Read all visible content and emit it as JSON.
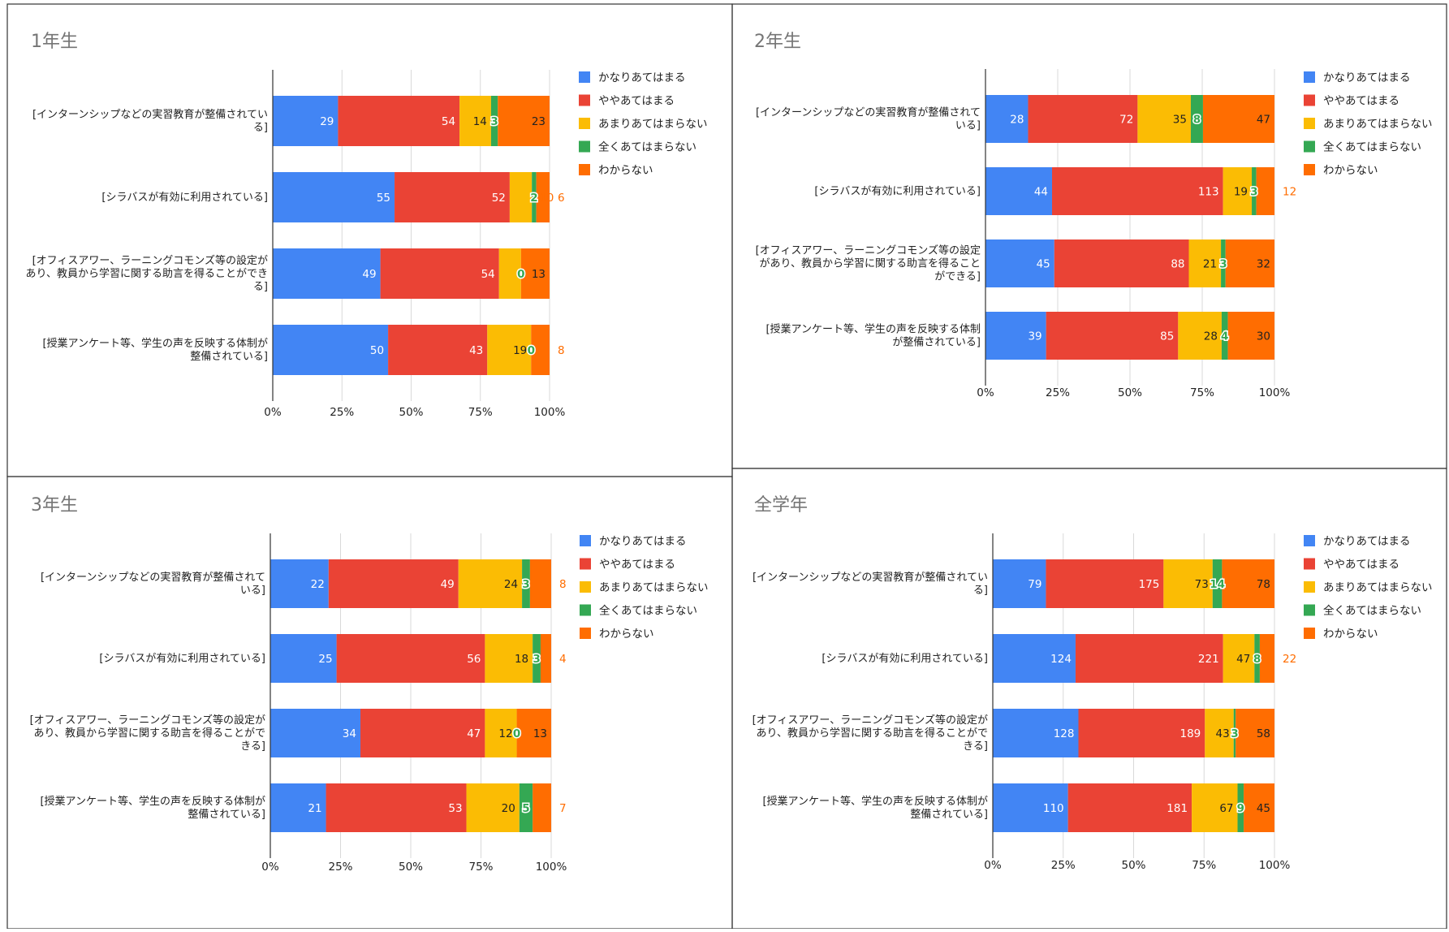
{
  "colors": [
    "#4285F4",
    "#EA4335",
    "#FBBC04",
    "#34A853",
    "#FF6D01"
  ],
  "legend": [
    "かなりあてはまる",
    "ややあてはまる",
    "あまりあてはまらない",
    "全くあてはまらない",
    "わからない"
  ],
  "chart_data": [
    {
      "type": "bar",
      "stacking": "percent",
      "title": "1年生",
      "categories": [
        [
          "[インターンシップなどの実習教育が整備されてい",
          "る]"
        ],
        [
          "[シラバスが有効に利用されている]"
        ],
        [
          "[オフィスアワー、ラーニングコモンズ等の設定が",
          "あり、教員から学習に関する助言を得ることができ",
          "る]"
        ],
        [
          "[授業アンケート等、学生の声を反映する体制が",
          "整備されている]"
        ]
      ],
      "x_ticks": [
        "0%",
        "25%",
        "50%",
        "75%",
        "100%"
      ],
      "xlim": [
        0,
        100
      ],
      "grid": true,
      "legend_position": "right",
      "series": [
        {
          "name": "かなりあてはまる",
          "values": [
            29,
            55,
            49,
            50
          ]
        },
        {
          "name": "ややあてはまる",
          "values": [
            54,
            52,
            54,
            43
          ]
        },
        {
          "name": "あまりあてはまらない",
          "values": [
            14,
            10,
            10,
            19
          ]
        },
        {
          "name": "全くあてはまらない",
          "values": [
            3,
            2,
            0,
            0
          ]
        },
        {
          "name": "わからない",
          "values": [
            23,
            6,
            13,
            8
          ]
        }
      ]
    },
    {
      "type": "bar",
      "stacking": "percent",
      "title": "2年生",
      "categories": [
        [
          "[インターンシップなどの実習教育が整備されて",
          "いる]"
        ],
        [
          "[シラバスが有効に利用されている]"
        ],
        [
          "[オフィスアワー、ラーニングコモンズ等の設定",
          "があり、教員から学習に関する助言を得ること",
          "ができる]"
        ],
        [
          "[授業アンケート等、学生の声を反映する体制",
          "が整備されている]"
        ]
      ],
      "x_ticks": [
        "0%",
        "25%",
        "50%",
        "75%",
        "100%"
      ],
      "xlim": [
        0,
        100
      ],
      "grid": true,
      "legend_position": "right",
      "series": [
        {
          "name": "かなりあてはまる",
          "values": [
            28,
            44,
            45,
            39
          ]
        },
        {
          "name": "ややあてはまる",
          "values": [
            72,
            113,
            88,
            85
          ]
        },
        {
          "name": "あまりあてはまらない",
          "values": [
            35,
            19,
            21,
            28
          ]
        },
        {
          "name": "全くあてはまらない",
          "values": [
            8,
            3,
            3,
            4
          ]
        },
        {
          "name": "わからない",
          "values": [
            47,
            12,
            32,
            30
          ]
        }
      ]
    },
    {
      "type": "bar",
      "stacking": "percent",
      "title": "3年生",
      "categories": [
        [
          "[インターンシップなどの実習教育が整備されて",
          "いる]"
        ],
        [
          "[シラバスが有効に利用されている]"
        ],
        [
          "[オフィスアワー、ラーニングコモンズ等の設定が",
          "あり、教員から学習に関する助言を得ることがで",
          "きる]"
        ],
        [
          "[授業アンケート等、学生の声を反映する体制が",
          "整備されている]"
        ]
      ],
      "x_ticks": [
        "0%",
        "25%",
        "50%",
        "75%",
        "100%"
      ],
      "xlim": [
        0,
        100
      ],
      "grid": true,
      "legend_position": "right",
      "series": [
        {
          "name": "かなりあてはまる",
          "values": [
            22,
            25,
            34,
            21
          ]
        },
        {
          "name": "ややあてはまる",
          "values": [
            49,
            56,
            47,
            53
          ]
        },
        {
          "name": "あまりあてはまらない",
          "values": [
            24,
            18,
            12,
            20
          ]
        },
        {
          "name": "全くあてはまらない",
          "values": [
            3,
            3,
            0,
            5
          ]
        },
        {
          "name": "わからない",
          "values": [
            8,
            4,
            13,
            7
          ]
        }
      ]
    },
    {
      "type": "bar",
      "stacking": "percent",
      "title": "全学年",
      "categories": [
        [
          "[インターンシップなどの実習教育が整備されてい",
          "る]"
        ],
        [
          "[シラバスが有効に利用されている]"
        ],
        [
          "[オフィスアワー、ラーニングコモンズ等の設定が",
          "あり、教員から学習に関する助言を得ることがで",
          "きる]"
        ],
        [
          "[授業アンケート等、学生の声を反映する体制が",
          "整備されている]"
        ]
      ],
      "x_ticks": [
        "0%",
        "25%",
        "50%",
        "75%",
        "100%"
      ],
      "xlim": [
        0,
        100
      ],
      "grid": true,
      "legend_position": "right",
      "series": [
        {
          "name": "かなりあてはまる",
          "values": [
            79,
            124,
            128,
            110
          ]
        },
        {
          "name": "ややあてはまる",
          "values": [
            175,
            221,
            189,
            181
          ]
        },
        {
          "name": "あまりあてはまらない",
          "values": [
            73,
            47,
            43,
            67
          ]
        },
        {
          "name": "全くあてはまらない",
          "values": [
            14,
            8,
            3,
            9
          ]
        },
        {
          "name": "わからない",
          "values": [
            78,
            22,
            58,
            45
          ]
        }
      ]
    }
  ]
}
